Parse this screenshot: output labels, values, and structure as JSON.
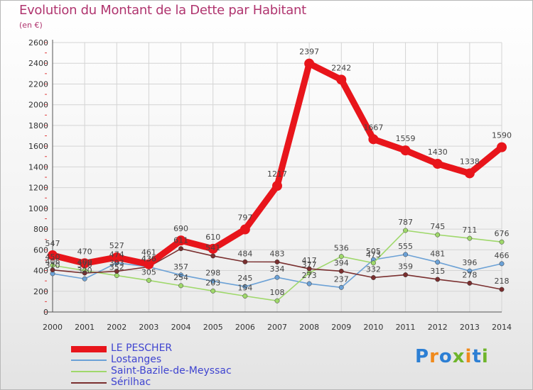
{
  "header": {
    "title": "Evolution du Montant de la Dette par Habitant",
    "unit": "(en €)"
  },
  "logo": {
    "text": "Proxiti"
  },
  "chart_data": {
    "type": "line",
    "title": "Evolution du Montant de la Dette par Habitant",
    "subtitle": "(en €)",
    "xlabel": "",
    "ylabel": "",
    "ylim": [
      0,
      2600
    ],
    "yticks": [
      0,
      200,
      400,
      600,
      800,
      1000,
      1200,
      1400,
      1600,
      1800,
      2000,
      2200,
      2400,
      2600
    ],
    "categories": [
      "2000",
      "2001",
      "2002",
      "2003",
      "2004",
      "2005",
      "2006",
      "2007",
      "2008",
      "2009",
      "2010",
      "2011",
      "2012",
      "2013",
      "2014"
    ],
    "grid": true,
    "legend_position": "bottom-left",
    "series": [
      {
        "name": "LE PESCHER",
        "color": "#e8151b",
        "emphasis": true,
        "values": [
          547,
          470,
          527,
          461,
          690,
          610,
          797,
          1217,
          2397,
          2242,
          1667,
          1559,
          1430,
          1338,
          1590
        ],
        "labels": [
          "547",
          "470",
          "527",
          "461",
          "690",
          "610",
          "797",
          "1217",
          "2397",
          "2242",
          "1667",
          "1559",
          "1430",
          "1338",
          "1590"
        ]
      },
      {
        "name": "Lostanges",
        "color": "#6ba1d6",
        "values": [
          370,
          320,
          474,
          436,
          357,
          298,
          245,
          334,
          273,
          237,
          505,
          555,
          481,
          396,
          466
        ],
        "labels": [
          "370",
          "320",
          "474",
          "436",
          "357",
          "298",
          "245",
          "334",
          "273",
          "237",
          "505",
          "555",
          "481",
          "396",
          "466"
        ]
      },
      {
        "name": "Saint-Bazile-de-Meyssac",
        "color": "#9fd86b",
        "values": [
          450,
          400,
          352,
          305,
          254,
          203,
          154,
          108,
          377,
          536,
          473,
          787,
          745,
          711,
          676
        ],
        "labels": [
          "450",
          "400",
          "352",
          "305",
          "254",
          "203",
          "154",
          "108",
          "377",
          "536",
          "473",
          "787",
          "745",
          "711",
          "676"
        ]
      },
      {
        "name": "Sérilhac",
        "color": "#7a2f2f",
        "values": [
          406,
          376,
          393,
          436,
          611,
          541,
          484,
          483,
          417,
          394,
          332,
          359,
          315,
          278,
          218
        ],
        "labels": [
          "406",
          "376",
          "393",
          "436",
          "611",
          "541",
          "484",
          "483",
          "417",
          "394",
          "332",
          "359",
          "315",
          "278",
          "218"
        ]
      }
    ]
  }
}
